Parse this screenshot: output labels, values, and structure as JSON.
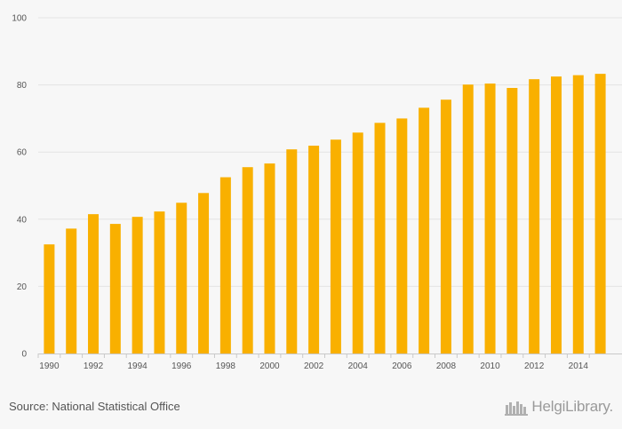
{
  "chart_data": {
    "type": "bar",
    "title": "",
    "xlabel": "",
    "ylabel": "",
    "ylim": [
      0,
      100
    ],
    "yticks": [
      0,
      20,
      40,
      60,
      80,
      100
    ],
    "categories": [
      "1990",
      "1991",
      "1992",
      "1993",
      "1994",
      "1995",
      "1996",
      "1997",
      "1998",
      "1999",
      "2000",
      "2001",
      "2002",
      "2003",
      "2004",
      "2005",
      "2006",
      "2007",
      "2008",
      "2009",
      "2010",
      "2011",
      "2012",
      "2013",
      "2014",
      "2015"
    ],
    "xtick_labels": [
      "1990",
      "1992",
      "1994",
      "1996",
      "1998",
      "2000",
      "2002",
      "2004",
      "2006",
      "2008",
      "2010",
      "2012",
      "2014"
    ],
    "values": [
      32.5,
      37.2,
      41.5,
      38.6,
      40.7,
      42.3,
      44.9,
      47.8,
      52.5,
      55.5,
      56.6,
      60.8,
      61.9,
      63.7,
      65.8,
      68.7,
      70.0,
      73.2,
      75.6,
      80.1,
      80.4,
      79.1,
      81.7,
      82.5,
      82.9,
      83.3
    ],
    "bar_color": "#f9b000",
    "gridlines": true
  },
  "footer": {
    "source": "Source: National Statistical Office",
    "brand": "HelgiLibrary."
  },
  "colors": {
    "background": "#f7f7f7",
    "grid": "#e4e4e4",
    "text": "#555555",
    "brand": "#9a9a9a"
  }
}
